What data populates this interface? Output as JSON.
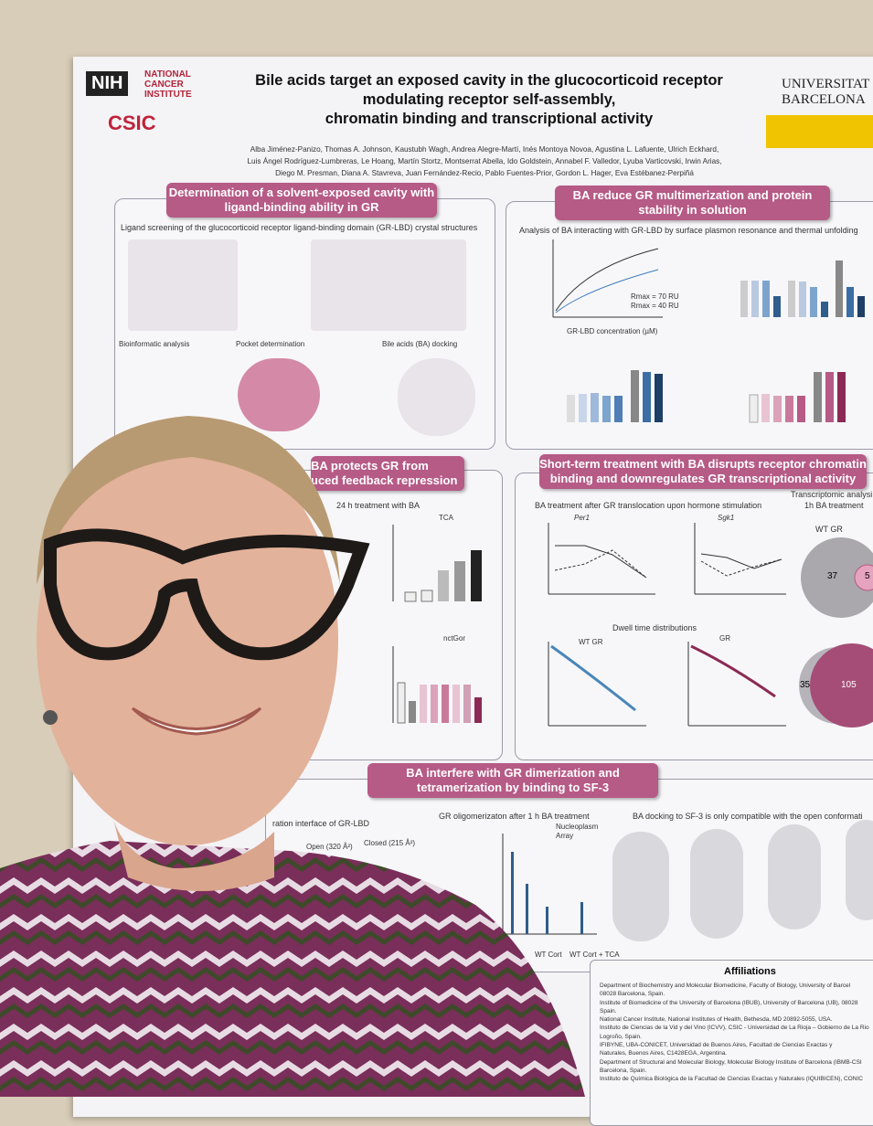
{
  "poster": {
    "logos": {
      "nih": "NIH",
      "nci": [
        "NATIONAL",
        "CANCER",
        "INSTITUTE"
      ],
      "csic": "CSIC",
      "ub": [
        "UNIVERSITAT DE",
        "BARCELONA"
      ]
    },
    "title": [
      "Bile acids target an exposed cavity in the glucocorticoid receptor",
      "modulating receptor self-assembly,",
      "chromatin binding and transcriptional activity"
    ],
    "authors": [
      "Alba Jiménez-Panizo, Thomas A. Johnson, Kaustubh Wagh, Andrea Alegre-Martí, Inés Montoya Novoa, Agustina L. Lafuente, Ulrich Eckhard,",
      "Luis Ángel Rodríguez-Lumbreras, Le Hoang, Martín Stortz, Montserrat Abella, Ido Goldstein, Annabel F. Valledor, Lyuba Varticovski, Irwin Arias,",
      "Diego M. Presman, Diana A. Stavreva, Juan Fernández-Recio, Pablo Fuentes-Prior, Gordon L. Hager, Eva Estébanez-Perpiñá"
    ],
    "sections": [
      {
        "heading": [
          "Determination of a solvent-exposed cavity with",
          "ligand-binding ability in GR"
        ],
        "caption": "Ligand screening of the glucocorticoid receptor ligand-binding domain (GR-LBD) crystal structures",
        "labels": [
          "Bioinformatic analysis",
          "Pocket determination",
          "Bile acids (BA) docking"
        ]
      },
      {
        "heading": [
          "BA reduce GR multimerization and protein",
          "stability in solution"
        ],
        "caption": "Analysis of BA interacting with GR-LBD by surface plasmon resonance and thermal unfolding",
        "labels": [
          "Rmax = 70 RU",
          "Rmax = 40 RU",
          "GR-LBD concentration (µM)"
        ]
      },
      {
        "heading": [
          "BA protects GR from",
          "uced feedback repression"
        ],
        "caption": "24 h treatment with BA",
        "labels": [
          "TCA",
          "nctGor"
        ]
      },
      {
        "heading": [
          "Short-term treatment with BA disrupts receptor chromatin",
          "binding and downregulates GR transcriptional activity"
        ],
        "caption": "BA treatment after GR translocation upon hormone stimulation",
        "labels": [
          "Transcriptomic analysi",
          "1h BA treatment",
          "Per1",
          "Sgk1",
          "WT GR",
          "Dwell time distributions",
          "WT GR",
          "GR",
          "37",
          "5",
          "35",
          "105"
        ]
      },
      {
        "heading": [
          "BA interfere with GR dimerization and",
          "tetramerization by binding to SF-3"
        ],
        "caption": "GR oligomerizaton after 1 h BA treatment",
        "labels": [
          "ration interface of GR-LBD",
          "Open (320 Å²)",
          "Closed (215 Å²)",
          "BA docking to SF-3 is only compatible with the open conformati",
          "Nucleoplasm",
          "Array",
          "WT Cort",
          "WT Cort + TCA"
        ]
      }
    ],
    "affiliations": {
      "heading": "Affiliations",
      "items": [
        "Department of Biochemistry and Molecular Biomedicine, Faculty of Biology, University of Barcel",
        "08028 Barcelona, Spain.",
        "Institute of Biomedicine of the University of Barcelona (IBUB), University of Barcelona (UB), 08028",
        "Spain.",
        "National Cancer Institute, National Institutes of Health, Bethesda, MD 20892-5055, USA.",
        "Instituto de Ciencias de la Vid y del Vino (ICVV), CSIC - Universidad de La Rioja – Gobierno de La Rio",
        "Logroño, Spain.",
        "IFIBYNE, UBA-CONICET, Universidad de Buenos Aires, Facultad de Ciencias Exactas y",
        "Naturales, Buenos Aires, C1428EGA, Argentina.",
        "Department of Structural and Molecular Biology, Molecular Biology Institute of Barcelona (IBMB-CSI",
        "Barcelona, Spain.",
        "Instituto de Química Biológica de la Facultad de Ciencias Exactas y Naturales (IQUIBICEN), CONIC"
      ]
    }
  }
}
